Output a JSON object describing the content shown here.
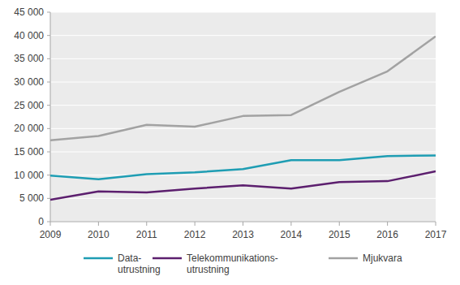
{
  "chart_data": {
    "type": "line",
    "x": [
      2009,
      2010,
      2011,
      2012,
      2013,
      2014,
      2015,
      2016,
      2017
    ],
    "xlim": [
      2009,
      2017
    ],
    "xticks": [
      2009,
      2010,
      2011,
      2012,
      2013,
      2014,
      2015,
      2016,
      2017
    ],
    "ylim": [
      0,
      45000
    ],
    "yticks": [
      0,
      {
        "value": 5000,
        "label": "5 000"
      },
      {
        "value": 10000,
        "label": "10 000"
      },
      {
        "value": 15000,
        "label": "15 000"
      },
      {
        "value": 20000,
        "label": "20 000"
      },
      {
        "value": 25000,
        "label": "25 000"
      },
      {
        "value": 30000,
        "label": "30 000"
      },
      {
        "value": 35000,
        "label": "35 000"
      },
      {
        "value": 40000,
        "label": "40 000"
      },
      {
        "value": 45000,
        "label": "45 000"
      }
    ],
    "grid": true,
    "legend": "bottom",
    "series": [
      {
        "name": "Data-\nutrustning",
        "color": "#1e9db3",
        "values": [
          9900,
          9100,
          10200,
          10600,
          11300,
          13200,
          13200,
          14100,
          14200
        ]
      },
      {
        "name": "Telekommunikations-\nutrustning",
        "color": "#5c1f6e",
        "values": [
          4700,
          6500,
          6300,
          7100,
          7800,
          7100,
          8500,
          8700,
          10800
        ]
      },
      {
        "name": "Mjukvara",
        "color": "#a2a2a2",
        "values": [
          17500,
          18400,
          20800,
          20400,
          22700,
          22900,
          27900,
          32300,
          39800
        ]
      }
    ]
  }
}
